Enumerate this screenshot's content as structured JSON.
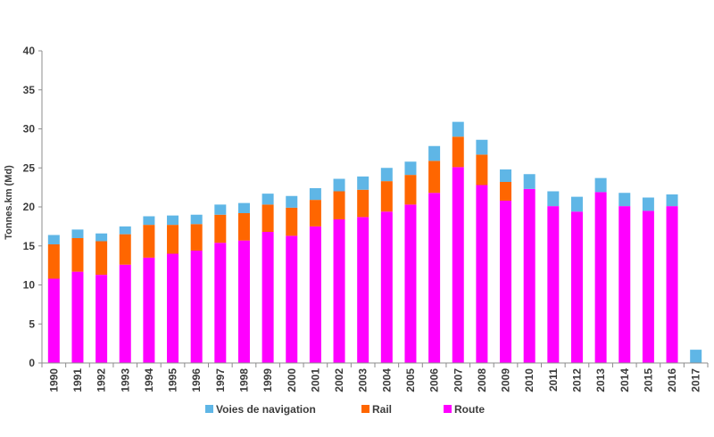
{
  "chart_data": {
    "type": "bar",
    "stacked": true,
    "ylabel": "Tonnes.km (Md)",
    "ylim": [
      0,
      40
    ],
    "yticks": [
      0,
      5,
      10,
      15,
      20,
      25,
      30,
      35,
      40
    ],
    "grid": false,
    "legend_position": "bottom",
    "categories": [
      "1990",
      "1991",
      "1992",
      "1993",
      "1994",
      "1995",
      "1996",
      "1997",
      "1998",
      "1999",
      "2000",
      "2001",
      "2002",
      "2003",
      "2004",
      "2005",
      "2006",
      "2007",
      "2008",
      "2009",
      "2010",
      "2011",
      "2012",
      "2013",
      "2014",
      "2015",
      "2016",
      "2017"
    ],
    "series": [
      {
        "name": "Route",
        "color": "#ff00ff",
        "values": [
          10.8,
          11.7,
          11.3,
          12.6,
          13.5,
          14.0,
          14.4,
          15.4,
          15.7,
          16.8,
          16.3,
          17.5,
          18.4,
          18.7,
          19.4,
          20.3,
          21.8,
          25.1,
          22.8,
          20.8,
          22.3,
          20.1,
          19.4,
          21.9,
          20.1,
          19.5,
          20.1,
          0
        ]
      },
      {
        "name": "Rail",
        "color": "#ff6600",
        "values": [
          4.4,
          4.3,
          4.3,
          3.9,
          4.2,
          3.7,
          3.4,
          3.6,
          3.5,
          3.5,
          3.6,
          3.4,
          3.6,
          3.5,
          3.9,
          3.8,
          4.1,
          3.9,
          3.9,
          2.4,
          0,
          0,
          0,
          0,
          0,
          0,
          0,
          0
        ]
      },
      {
        "name": "Voies de navigation",
        "color": "#5fb6e6",
        "values": [
          1.2,
          1.1,
          1.0,
          1.0,
          1.1,
          1.2,
          1.2,
          1.3,
          1.3,
          1.4,
          1.5,
          1.5,
          1.6,
          1.7,
          1.7,
          1.7,
          1.9,
          1.9,
          1.9,
          1.6,
          1.9,
          1.9,
          1.9,
          1.8,
          1.7,
          1.7,
          1.5,
          1.7
        ]
      }
    ],
    "legend_order": [
      "Voies de navigation",
      "Rail",
      "Route"
    ]
  }
}
